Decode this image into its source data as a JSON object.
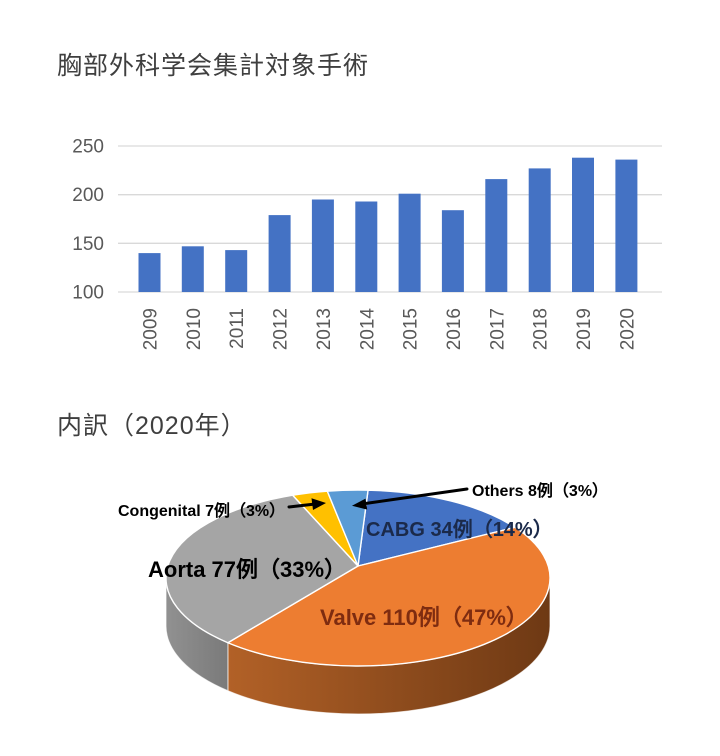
{
  "chart_data": [
    {
      "type": "bar",
      "title": "胸部外科学会集計対象手術",
      "categories": [
        "2009",
        "2010",
        "2011",
        "2012",
        "2013",
        "2014",
        "2015",
        "2016",
        "2017",
        "2018",
        "2019",
        "2020"
      ],
      "values": [
        140,
        147,
        143,
        179,
        195,
        193,
        201,
        184,
        216,
        227,
        238,
        236
      ],
      "xlabel": "",
      "ylabel": "",
      "ylim": [
        100,
        250
      ],
      "yticks": [
        100,
        150,
        200,
        250
      ],
      "grid": true,
      "legend": false,
      "bar_color": "#4472C4",
      "grid_color": "#D9D9D9",
      "axis_text_color": "#595959"
    },
    {
      "type": "pie",
      "title": "内訳（2020年）",
      "total": 236,
      "legend": false,
      "style": "3d-pie",
      "series": [
        {
          "name": "CABG",
          "value": 34,
          "percent": "14%",
          "label": "CABG 34例（14%）",
          "color": "#4472C4",
          "label_color": "#1B2A4A"
        },
        {
          "name": "Valve",
          "value": 110,
          "percent": "47%",
          "label": "Valve 110例（47%）",
          "color": "#ED7D31",
          "label_color": "#7E2C10",
          "wall_colors": [
            "#B26127",
            "#6E3914"
          ]
        },
        {
          "name": "Aorta",
          "value": 77,
          "percent": "33%",
          "label": "Aorta 77例（33%）",
          "color": "#A5A5A5",
          "label_color": "#000000",
          "wall_colors": [
            "#919191",
            "#7A7A7A"
          ]
        },
        {
          "name": "Congenital",
          "value": 7,
          "percent": "3%",
          "label": "Congenital 7例（3%）",
          "color": "#FFC000",
          "label_color": "#000000"
        },
        {
          "name": "Others",
          "value": 8,
          "percent": "3%",
          "label": "Others 8例（3%）",
          "color": "#5B9BD5",
          "label_color": "#000000"
        }
      ]
    }
  ]
}
